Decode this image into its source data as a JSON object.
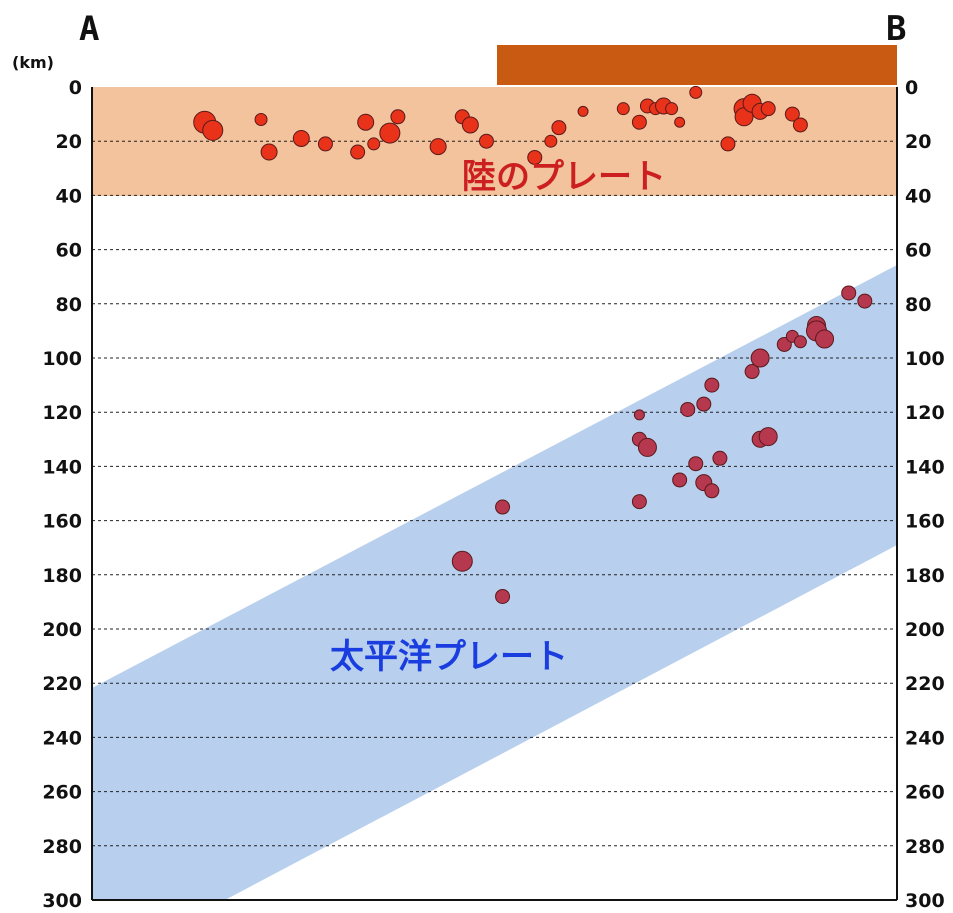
{
  "labels": {
    "left_point": "A",
    "right_point": "B",
    "unit": "(km)",
    "continental_plate": "陸のプレート",
    "pacific_plate": "太平洋プレート"
  },
  "colors": {
    "continental_band": "#f3c39d",
    "land_bar": "#c95a12",
    "pacific_band": "#b8cfee",
    "shallow_quake": "#e8321a",
    "deep_quake": "#b5384f",
    "continental_text": "#cc1f1f",
    "pacific_text": "#1a3de0"
  },
  "chart_data": {
    "type": "scatter",
    "ylabel": "(km)",
    "ylim": [
      0,
      300
    ],
    "y_ticks": [
      "0",
      "20",
      "40",
      "60",
      "80",
      "100",
      "120",
      "140",
      "160",
      "180",
      "200",
      "220",
      "240",
      "260",
      "280",
      "300"
    ],
    "grid": true,
    "continental_plate_depth": [
      0,
      40
    ],
    "series": [
      {
        "name": "陸のプレート",
        "points": [
          {
            "x": 0.14,
            "y": 13,
            "s": 11
          },
          {
            "x": 0.15,
            "y": 16,
            "s": 10
          },
          {
            "x": 0.21,
            "y": 12,
            "s": 6
          },
          {
            "x": 0.22,
            "y": 24,
            "s": 8
          },
          {
            "x": 0.26,
            "y": 19,
            "s": 8
          },
          {
            "x": 0.29,
            "y": 21,
            "s": 7
          },
          {
            "x": 0.33,
            "y": 24,
            "s": 7
          },
          {
            "x": 0.34,
            "y": 13,
            "s": 8
          },
          {
            "x": 0.35,
            "y": 21,
            "s": 6
          },
          {
            "x": 0.37,
            "y": 17,
            "s": 10
          },
          {
            "x": 0.38,
            "y": 11,
            "s": 7
          },
          {
            "x": 0.43,
            "y": 22,
            "s": 8
          },
          {
            "x": 0.46,
            "y": 11,
            "s": 7
          },
          {
            "x": 0.47,
            "y": 14,
            "s": 8
          },
          {
            "x": 0.49,
            "y": 20,
            "s": 7
          },
          {
            "x": 0.55,
            "y": 26,
            "s": 7
          },
          {
            "x": 0.57,
            "y": 20,
            "s": 6
          },
          {
            "x": 0.58,
            "y": 15,
            "s": 7
          },
          {
            "x": 0.61,
            "y": 9,
            "s": 5
          },
          {
            "x": 0.66,
            "y": 8,
            "s": 6
          },
          {
            "x": 0.68,
            "y": 13,
            "s": 7
          },
          {
            "x": 0.69,
            "y": 7,
            "s": 7
          },
          {
            "x": 0.7,
            "y": 8,
            "s": 6
          },
          {
            "x": 0.71,
            "y": 7,
            "s": 8
          },
          {
            "x": 0.72,
            "y": 8,
            "s": 6
          },
          {
            "x": 0.73,
            "y": 13,
            "s": 5
          },
          {
            "x": 0.75,
            "y": 2,
            "s": 6
          },
          {
            "x": 0.79,
            "y": 21,
            "s": 7
          },
          {
            "x": 0.81,
            "y": 8,
            "s": 10
          },
          {
            "x": 0.81,
            "y": 11,
            "s": 9
          },
          {
            "x": 0.82,
            "y": 6,
            "s": 9
          },
          {
            "x": 0.83,
            "y": 9,
            "s": 8
          },
          {
            "x": 0.84,
            "y": 8,
            "s": 7
          },
          {
            "x": 0.87,
            "y": 10,
            "s": 7
          },
          {
            "x": 0.88,
            "y": 14,
            "s": 7
          }
        ]
      },
      {
        "name": "太平洋プレート",
        "points": [
          {
            "x": 0.46,
            "y": 175,
            "s": 10
          },
          {
            "x": 0.51,
            "y": 155,
            "s": 7
          },
          {
            "x": 0.51,
            "y": 188,
            "s": 7
          },
          {
            "x": 0.68,
            "y": 121,
            "s": 5
          },
          {
            "x": 0.68,
            "y": 130,
            "s": 7
          },
          {
            "x": 0.69,
            "y": 133,
            "s": 9
          },
          {
            "x": 0.68,
            "y": 153,
            "s": 7
          },
          {
            "x": 0.74,
            "y": 119,
            "s": 7
          },
          {
            "x": 0.73,
            "y": 145,
            "s": 7
          },
          {
            "x": 0.75,
            "y": 139,
            "s": 7
          },
          {
            "x": 0.76,
            "y": 117,
            "s": 7
          },
          {
            "x": 0.76,
            "y": 146,
            "s": 8
          },
          {
            "x": 0.77,
            "y": 149,
            "s": 7
          },
          {
            "x": 0.77,
            "y": 110,
            "s": 7
          },
          {
            "x": 0.78,
            "y": 137,
            "s": 7
          },
          {
            "x": 0.82,
            "y": 105,
            "s": 7
          },
          {
            "x": 0.83,
            "y": 100,
            "s": 9
          },
          {
            "x": 0.83,
            "y": 130,
            "s": 8
          },
          {
            "x": 0.84,
            "y": 129,
            "s": 9
          },
          {
            "x": 0.86,
            "y": 95,
            "s": 7
          },
          {
            "x": 0.87,
            "y": 92,
            "s": 6
          },
          {
            "x": 0.88,
            "y": 94,
            "s": 6
          },
          {
            "x": 0.9,
            "y": 88,
            "s": 9
          },
          {
            "x": 0.9,
            "y": 90,
            "s": 10
          },
          {
            "x": 0.91,
            "y": 93,
            "s": 9
          },
          {
            "x": 0.94,
            "y": 76,
            "s": 7
          },
          {
            "x": 0.96,
            "y": 79,
            "s": 7
          }
        ]
      }
    ]
  }
}
